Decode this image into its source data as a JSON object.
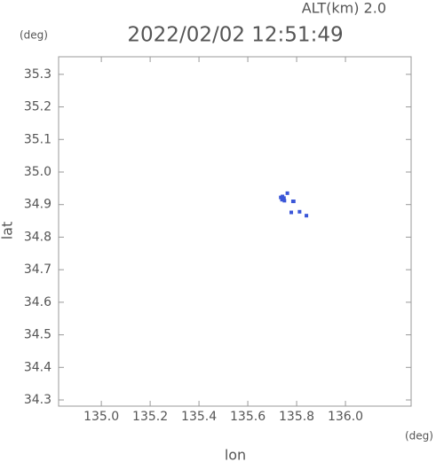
{
  "chart_data": {
    "type": "scatter",
    "subtitle": "ALT(km) 2.0",
    "title": "2022/02/02 12:51:49",
    "y_unit": "(deg)",
    "x_unit": "(deg)",
    "x_label": "lon",
    "y_label": "lat",
    "xlim": [
      134.825,
      136.269
    ],
    "ylim": [
      34.281,
      35.354
    ],
    "xticks": [
      {
        "value": 135.0,
        "label": "135.0"
      },
      135.2,
      135.4,
      135.6,
      135.8,
      {
        "value": 136.0,
        "label": "136.0"
      }
    ],
    "yticks": [
      34.3,
      34.4,
      34.5,
      34.6,
      34.7,
      34.8,
      34.9,
      {
        "value": 35.0,
        "label": "35.0"
      },
      35.1,
      35.2,
      35.3
    ],
    "series": [
      {
        "color": "#3a56d8",
        "x": [
          135.735,
          135.742,
          135.748,
          135.75,
          135.74,
          135.762,
          135.785,
          135.788,
          135.778,
          135.812,
          135.84
        ],
        "y": [
          34.922,
          34.925,
          34.92,
          34.912,
          34.915,
          34.935,
          34.91,
          34.91,
          34.876,
          34.878,
          34.866
        ]
      }
    ]
  }
}
